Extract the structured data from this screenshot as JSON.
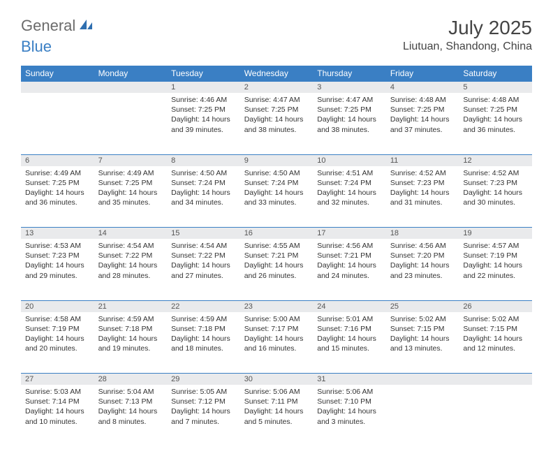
{
  "brand": {
    "general": "General",
    "blue": "Blue"
  },
  "title": "July 2025",
  "location": "Liutuan, Shandong, China",
  "colors": {
    "header_bg": "#3a7fc4",
    "header_text": "#ffffff",
    "daynum_bg": "#e9eaec",
    "row_border": "#3a7fc4",
    "text": "#333333",
    "title_text": "#444444",
    "logo_gray": "#6b6b6b",
    "logo_blue": "#3a7fc4",
    "page_bg": "#ffffff"
  },
  "daysOfWeek": [
    "Sunday",
    "Monday",
    "Tuesday",
    "Wednesday",
    "Thursday",
    "Friday",
    "Saturday"
  ],
  "weeks": [
    {
      "nums": [
        "",
        "",
        "1",
        "2",
        "3",
        "4",
        "5"
      ],
      "cells": [
        null,
        null,
        {
          "sunrise": "Sunrise: 4:46 AM",
          "sunset": "Sunset: 7:25 PM",
          "day1": "Daylight: 14 hours",
          "day2": "and 39 minutes."
        },
        {
          "sunrise": "Sunrise: 4:47 AM",
          "sunset": "Sunset: 7:25 PM",
          "day1": "Daylight: 14 hours",
          "day2": "and 38 minutes."
        },
        {
          "sunrise": "Sunrise: 4:47 AM",
          "sunset": "Sunset: 7:25 PM",
          "day1": "Daylight: 14 hours",
          "day2": "and 38 minutes."
        },
        {
          "sunrise": "Sunrise: 4:48 AM",
          "sunset": "Sunset: 7:25 PM",
          "day1": "Daylight: 14 hours",
          "day2": "and 37 minutes."
        },
        {
          "sunrise": "Sunrise: 4:48 AM",
          "sunset": "Sunset: 7:25 PM",
          "day1": "Daylight: 14 hours",
          "day2": "and 36 minutes."
        }
      ]
    },
    {
      "nums": [
        "6",
        "7",
        "8",
        "9",
        "10",
        "11",
        "12"
      ],
      "cells": [
        {
          "sunrise": "Sunrise: 4:49 AM",
          "sunset": "Sunset: 7:25 PM",
          "day1": "Daylight: 14 hours",
          "day2": "and 36 minutes."
        },
        {
          "sunrise": "Sunrise: 4:49 AM",
          "sunset": "Sunset: 7:25 PM",
          "day1": "Daylight: 14 hours",
          "day2": "and 35 minutes."
        },
        {
          "sunrise": "Sunrise: 4:50 AM",
          "sunset": "Sunset: 7:24 PM",
          "day1": "Daylight: 14 hours",
          "day2": "and 34 minutes."
        },
        {
          "sunrise": "Sunrise: 4:50 AM",
          "sunset": "Sunset: 7:24 PM",
          "day1": "Daylight: 14 hours",
          "day2": "and 33 minutes."
        },
        {
          "sunrise": "Sunrise: 4:51 AM",
          "sunset": "Sunset: 7:24 PM",
          "day1": "Daylight: 14 hours",
          "day2": "and 32 minutes."
        },
        {
          "sunrise": "Sunrise: 4:52 AM",
          "sunset": "Sunset: 7:23 PM",
          "day1": "Daylight: 14 hours",
          "day2": "and 31 minutes."
        },
        {
          "sunrise": "Sunrise: 4:52 AM",
          "sunset": "Sunset: 7:23 PM",
          "day1": "Daylight: 14 hours",
          "day2": "and 30 minutes."
        }
      ]
    },
    {
      "nums": [
        "13",
        "14",
        "15",
        "16",
        "17",
        "18",
        "19"
      ],
      "cells": [
        {
          "sunrise": "Sunrise: 4:53 AM",
          "sunset": "Sunset: 7:23 PM",
          "day1": "Daylight: 14 hours",
          "day2": "and 29 minutes."
        },
        {
          "sunrise": "Sunrise: 4:54 AM",
          "sunset": "Sunset: 7:22 PM",
          "day1": "Daylight: 14 hours",
          "day2": "and 28 minutes."
        },
        {
          "sunrise": "Sunrise: 4:54 AM",
          "sunset": "Sunset: 7:22 PM",
          "day1": "Daylight: 14 hours",
          "day2": "and 27 minutes."
        },
        {
          "sunrise": "Sunrise: 4:55 AM",
          "sunset": "Sunset: 7:21 PM",
          "day1": "Daylight: 14 hours",
          "day2": "and 26 minutes."
        },
        {
          "sunrise": "Sunrise: 4:56 AM",
          "sunset": "Sunset: 7:21 PM",
          "day1": "Daylight: 14 hours",
          "day2": "and 24 minutes."
        },
        {
          "sunrise": "Sunrise: 4:56 AM",
          "sunset": "Sunset: 7:20 PM",
          "day1": "Daylight: 14 hours",
          "day2": "and 23 minutes."
        },
        {
          "sunrise": "Sunrise: 4:57 AM",
          "sunset": "Sunset: 7:19 PM",
          "day1": "Daylight: 14 hours",
          "day2": "and 22 minutes."
        }
      ]
    },
    {
      "nums": [
        "20",
        "21",
        "22",
        "23",
        "24",
        "25",
        "26"
      ],
      "cells": [
        {
          "sunrise": "Sunrise: 4:58 AM",
          "sunset": "Sunset: 7:19 PM",
          "day1": "Daylight: 14 hours",
          "day2": "and 20 minutes."
        },
        {
          "sunrise": "Sunrise: 4:59 AM",
          "sunset": "Sunset: 7:18 PM",
          "day1": "Daylight: 14 hours",
          "day2": "and 19 minutes."
        },
        {
          "sunrise": "Sunrise: 4:59 AM",
          "sunset": "Sunset: 7:18 PM",
          "day1": "Daylight: 14 hours",
          "day2": "and 18 minutes."
        },
        {
          "sunrise": "Sunrise: 5:00 AM",
          "sunset": "Sunset: 7:17 PM",
          "day1": "Daylight: 14 hours",
          "day2": "and 16 minutes."
        },
        {
          "sunrise": "Sunrise: 5:01 AM",
          "sunset": "Sunset: 7:16 PM",
          "day1": "Daylight: 14 hours",
          "day2": "and 15 minutes."
        },
        {
          "sunrise": "Sunrise: 5:02 AM",
          "sunset": "Sunset: 7:15 PM",
          "day1": "Daylight: 14 hours",
          "day2": "and 13 minutes."
        },
        {
          "sunrise": "Sunrise: 5:02 AM",
          "sunset": "Sunset: 7:15 PM",
          "day1": "Daylight: 14 hours",
          "day2": "and 12 minutes."
        }
      ]
    },
    {
      "nums": [
        "27",
        "28",
        "29",
        "30",
        "31",
        "",
        ""
      ],
      "cells": [
        {
          "sunrise": "Sunrise: 5:03 AM",
          "sunset": "Sunset: 7:14 PM",
          "day1": "Daylight: 14 hours",
          "day2": "and 10 minutes."
        },
        {
          "sunrise": "Sunrise: 5:04 AM",
          "sunset": "Sunset: 7:13 PM",
          "day1": "Daylight: 14 hours",
          "day2": "and 8 minutes."
        },
        {
          "sunrise": "Sunrise: 5:05 AM",
          "sunset": "Sunset: 7:12 PM",
          "day1": "Daylight: 14 hours",
          "day2": "and 7 minutes."
        },
        {
          "sunrise": "Sunrise: 5:06 AM",
          "sunset": "Sunset: 7:11 PM",
          "day1": "Daylight: 14 hours",
          "day2": "and 5 minutes."
        },
        {
          "sunrise": "Sunrise: 5:06 AM",
          "sunset": "Sunset: 7:10 PM",
          "day1": "Daylight: 14 hours",
          "day2": "and 3 minutes."
        },
        null,
        null
      ]
    }
  ]
}
